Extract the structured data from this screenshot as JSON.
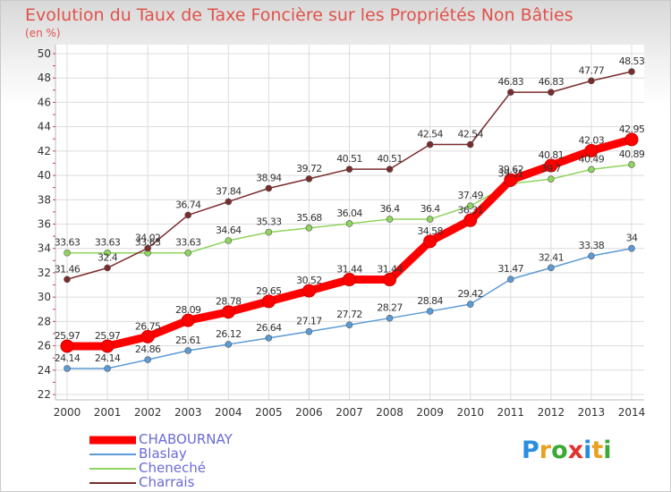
{
  "title": "Evolution du Taux de Taxe Foncière sur les Propriétés Non Bâties",
  "subtitle": "(en %)",
  "logo": {
    "text": "Proxiti",
    "letter_colors": [
      "#2a8de0",
      "#e8a21f",
      "#3aaa35",
      "#e0312d",
      "#2a8de0",
      "#e8a21f",
      "#3aaa35"
    ]
  },
  "chart_data": {
    "type": "line",
    "categories": [
      "2000",
      "2001",
      "2002",
      "2003",
      "2004",
      "2005",
      "2006",
      "2007",
      "2008",
      "2009",
      "2010",
      "2011",
      "2012",
      "2013",
      "2014"
    ],
    "ylim": [
      22,
      50
    ],
    "yticks": [
      22,
      24,
      26,
      28,
      30,
      32,
      34,
      36,
      38,
      40,
      42,
      44,
      46,
      48,
      50
    ],
    "grid": true,
    "legend_position": "bottom-left",
    "series": [
      {
        "name": "CHABOURNAY",
        "color": "#ff0000",
        "values": [
          25.97,
          25.97,
          26.75,
          28.09,
          28.78,
          29.65,
          30.52,
          31.44,
          31.44,
          34.58,
          36.31,
          39.62,
          40.81,
          42.03,
          42.95
        ],
        "labels": [
          "25.97",
          "25.97",
          "26.75",
          "28.09",
          "28.78",
          "29.65",
          "30.52",
          "31.44",
          "31.44",
          "34.58",
          "36.31",
          "39.62",
          "40.81",
          "42.03",
          "42.95"
        ]
      },
      {
        "name": "Blaslay",
        "color": "#5b9bd5",
        "values": [
          24.14,
          24.14,
          24.86,
          25.61,
          26.12,
          26.64,
          27.17,
          27.72,
          28.27,
          28.84,
          29.42,
          31.47,
          32.41,
          33.38,
          34
        ],
        "labels": [
          "24.14",
          "24.14",
          "24.86",
          "25.61",
          "26.12",
          "26.64",
          "27.17",
          "27.72",
          "28.27",
          "28.84",
          "29.42",
          "31.47",
          "32.41",
          "33.38",
          "34"
        ]
      },
      {
        "name": "Cheneché",
        "color": "#8ed45e",
        "values": [
          33.63,
          33.63,
          33.63,
          33.63,
          34.64,
          35.33,
          35.68,
          36.04,
          36.4,
          36.4,
          37.49,
          39.31,
          39.7,
          40.49,
          40.89
        ],
        "labels": [
          "33.63",
          "33.63",
          "33.63",
          "33.63",
          "34.64",
          "35.33",
          "35.68",
          "36.04",
          "36.4",
          "36.4",
          "37.49",
          "39.31",
          "39.7",
          "40.49",
          "40.89"
        ]
      },
      {
        "name": "Charrais",
        "color": "#7a2c2c",
        "values": [
          31.46,
          32.4,
          34.02,
          36.74,
          37.84,
          38.94,
          39.72,
          40.51,
          40.51,
          42.54,
          42.54,
          46.83,
          46.83,
          47.77,
          48.53
        ],
        "labels": [
          "31.46",
          "32.4",
          "34.02",
          "36.74",
          "37.84",
          "38.94",
          "39.72",
          "40.51",
          "40.51",
          "42.54",
          "42.54",
          "46.83",
          "46.83",
          "47.77",
          "48.53"
        ]
      }
    ]
  }
}
